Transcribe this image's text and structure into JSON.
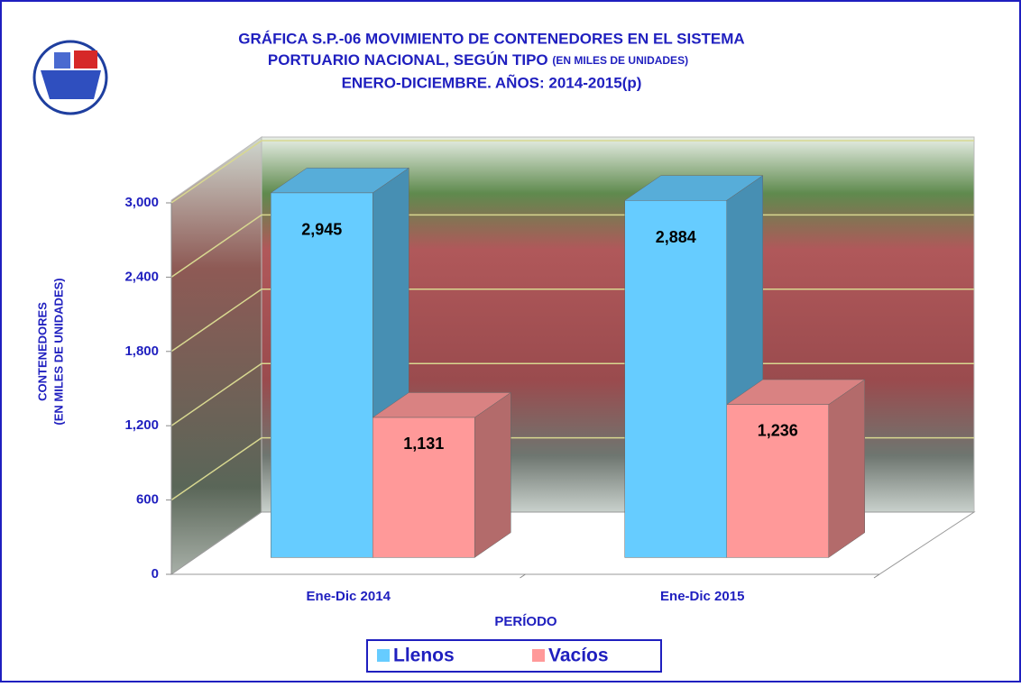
{
  "chart_data": {
    "type": "bar3d",
    "title": [
      "GRÁFICA S.P.-06 MOVIMIENTO DE CONTENEDORES EN EL SISTEMA",
      "PORTUARIO NACIONAL, SEGÚN TIPO",
      "ENERO-DICIEMBRE. AÑOS: 2014-2015(p)"
    ],
    "title_note": "(EN MILES DE UNIDADES)",
    "y_label": [
      "CONTENEDORES",
      "(EN MILES DE UNIDADES)"
    ],
    "x_label": "PERÍODO",
    "categories": [
      "Ene-Dic 2014",
      "Ene-Dic 2015"
    ],
    "series": [
      {
        "name": "Llenos",
        "color": "#66ccff",
        "values": [
          2945,
          2884
        ],
        "value_labels": [
          "2,945",
          "2,884"
        ]
      },
      {
        "name": "Vacíos",
        "color": "#ff9999",
        "values": [
          1131,
          1236
        ],
        "value_labels": [
          "1,131",
          "1,236"
        ]
      }
    ],
    "ylim": [
      0,
      3000
    ],
    "yticks": [
      0,
      600,
      {
        "value": 1200,
        "label": "1,200"
      },
      {
        "value": 1800,
        "label": "1,800"
      },
      {
        "value": 2400,
        "label": "2,400"
      },
      {
        "value": 3000,
        "label": "3,000"
      }
    ],
    "grid": true,
    "legend": "bottom"
  }
}
